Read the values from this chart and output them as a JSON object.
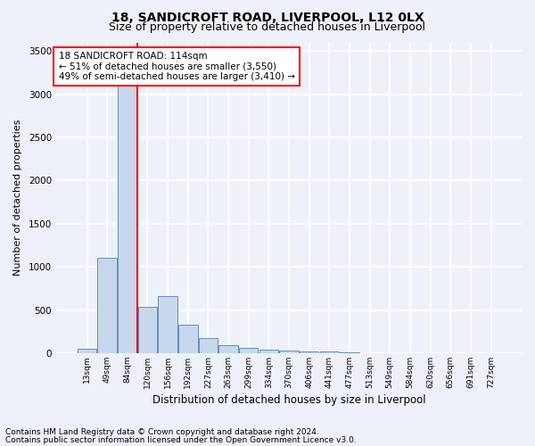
{
  "title1": "18, SANDICROFT ROAD, LIVERPOOL, L12 0LX",
  "title2": "Size of property relative to detached houses in Liverpool",
  "xlabel": "Distribution of detached houses by size in Liverpool",
  "ylabel": "Number of detached properties",
  "footnote1": "Contains HM Land Registry data © Crown copyright and database right 2024.",
  "footnote2": "Contains public sector information licensed under the Open Government Licence v3.0.",
  "bar_labels": [
    "13sqm",
    "49sqm",
    "84sqm",
    "120sqm",
    "156sqm",
    "192sqm",
    "227sqm",
    "263sqm",
    "299sqm",
    "334sqm",
    "370sqm",
    "406sqm",
    "441sqm",
    "477sqm",
    "513sqm",
    "549sqm",
    "584sqm",
    "620sqm",
    "656sqm",
    "691sqm",
    "727sqm"
  ],
  "bar_values": [
    50,
    1100,
    3450,
    540,
    660,
    330,
    175,
    95,
    65,
    45,
    30,
    20,
    15,
    5,
    2,
    2,
    1,
    1,
    0,
    0,
    0
  ],
  "bar_color": "#c8d8ec",
  "bar_edge_color": "#6090c0",
  "ylim": [
    0,
    3600
  ],
  "yticks": [
    0,
    500,
    1000,
    1500,
    2000,
    2500,
    3000,
    3500
  ],
  "line_x_index": 2.5,
  "property_line_color": "red",
  "annotation_text": "18 SANDICROFT ROAD: 114sqm\n← 51% of detached houses are smaller (3,550)\n49% of semi-detached houses are larger (3,410) →",
  "annotation_box_color": "white",
  "annotation_box_edge_color": "red",
  "bg_color": "#eef2f8",
  "plot_bg_color": "#eef2f8",
  "grid_color": "white",
  "title1_fontsize": 10,
  "title2_fontsize": 9,
  "xlabel_fontsize": 8.5,
  "ylabel_fontsize": 8,
  "footnote_fontsize": 6.5
}
